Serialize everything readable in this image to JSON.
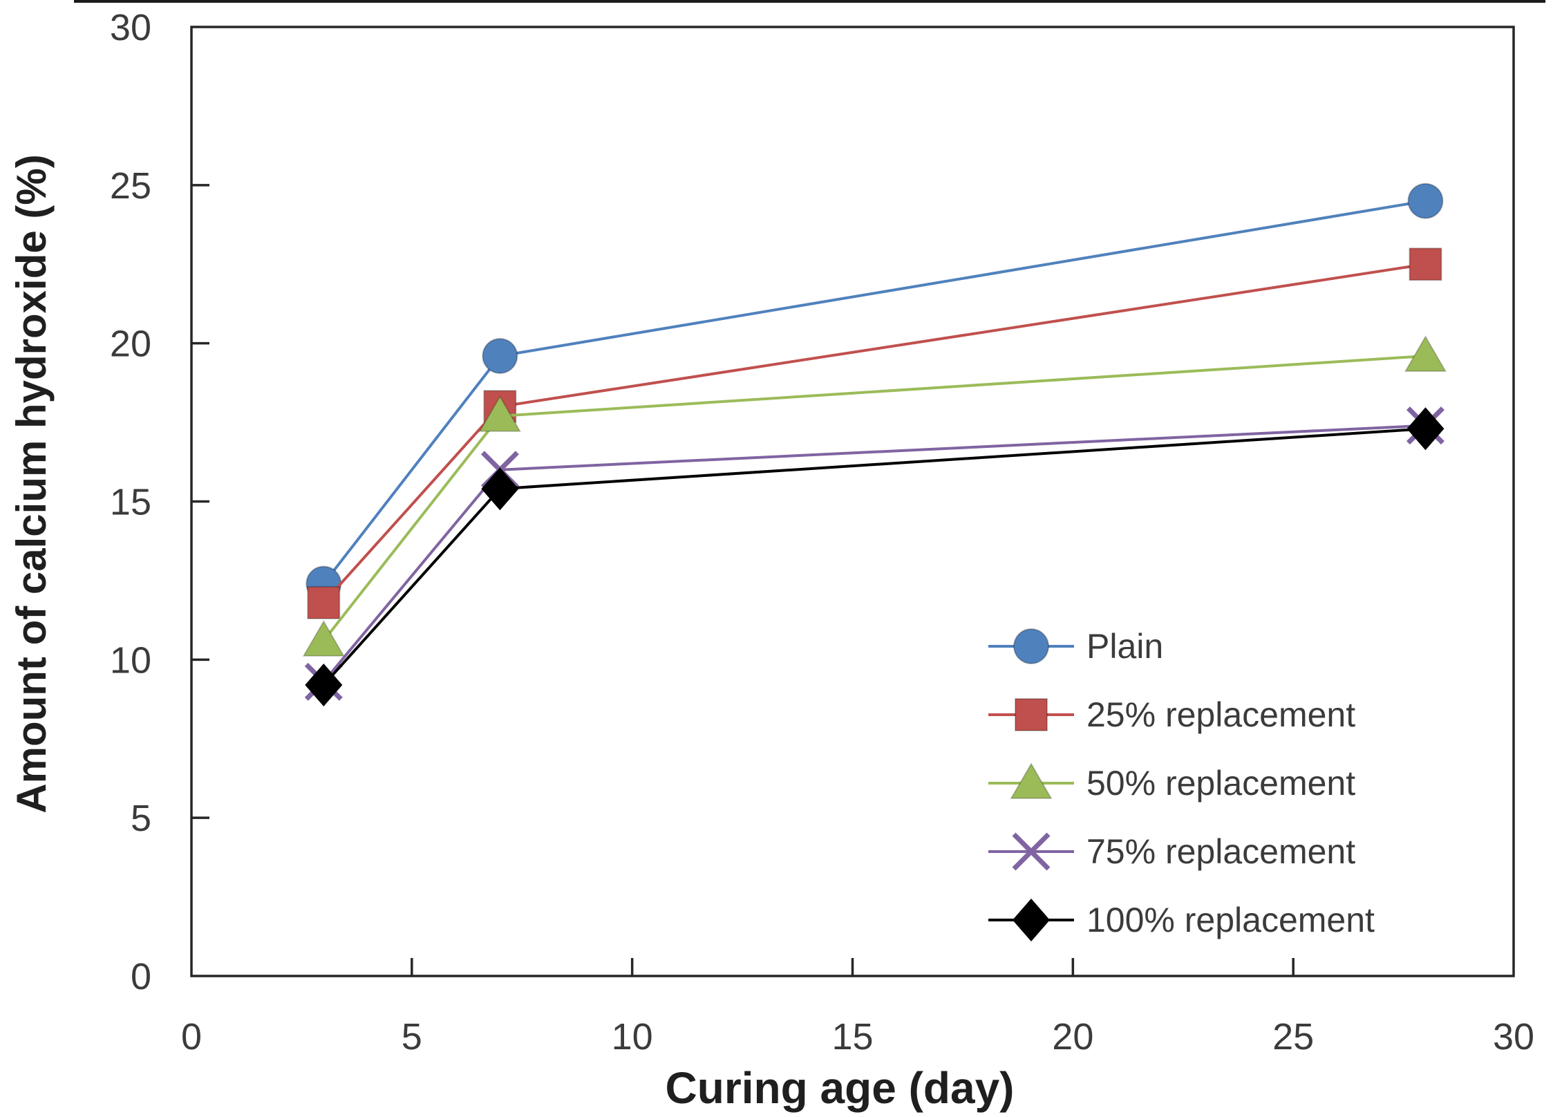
{
  "chart_data": {
    "type": "line",
    "title": "",
    "xlabel": "Curing age (day)",
    "ylabel": "Amount of calcium hydroxide (%)",
    "x": [
      3,
      7,
      28
    ],
    "xlim": [
      0,
      30
    ],
    "ylim": [
      0,
      30
    ],
    "xticks": [
      0,
      5,
      10,
      15,
      20,
      25,
      30
    ],
    "yticks": [
      0,
      5,
      10,
      15,
      20,
      25,
      30
    ],
    "grid": false,
    "legend_position": "inside-lower-right",
    "series": [
      {
        "name": "Plain",
        "marker": "circle",
        "color": "#4F81BD",
        "values": [
          12.4,
          19.6,
          24.5
        ]
      },
      {
        "name": "25% replacement",
        "marker": "square",
        "color": "#C0504D",
        "values": [
          11.8,
          18.0,
          22.5
        ]
      },
      {
        "name": "50% replacement",
        "marker": "triangle",
        "color": "#9BBB59",
        "values": [
          10.6,
          17.7,
          19.6
        ]
      },
      {
        "name": "75% replacement",
        "marker": "x",
        "color": "#8064A2",
        "values": [
          9.3,
          16.0,
          17.4
        ]
      },
      {
        "name": "100% replacement",
        "marker": "diamond",
        "color": "#000000",
        "values": [
          9.2,
          15.4,
          17.3
        ]
      }
    ],
    "colors": {
      "axis": "#262626",
      "tick_text": "#3b3b3b",
      "title_text": "#1f1f1f",
      "background": "#ffffff"
    }
  }
}
